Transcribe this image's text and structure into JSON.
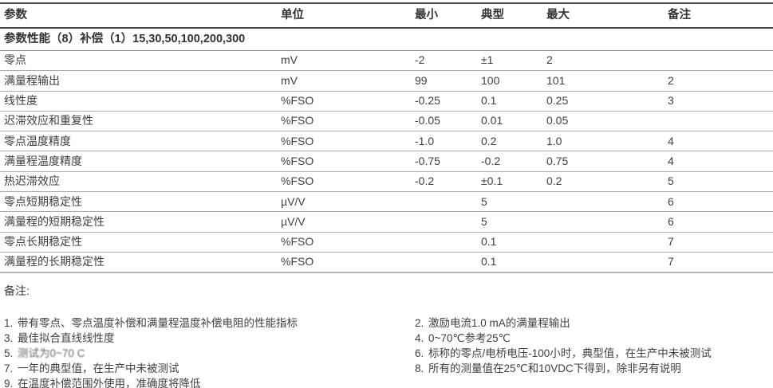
{
  "table": {
    "columns": {
      "param": "参数",
      "unit": "单位",
      "min": "最小",
      "typ": "典型",
      "max": "最大",
      "note": "备注"
    },
    "section_title": "参数性能（8）补偿（1）15,30,50,100,200,300",
    "rows": [
      {
        "param": "零点",
        "unit": "mV",
        "min": "-2",
        "typ": "±1",
        "max": "2",
        "note": ""
      },
      {
        "param": "满量程输出",
        "unit": "mV",
        "min": "99",
        "typ": "100",
        "max": "101",
        "note": "2"
      },
      {
        "param": "线性度",
        "unit": "%FSO",
        "min": "-0.25",
        "typ": "0.1",
        "max": "0.25",
        "note": "3"
      },
      {
        "param": "迟滞效应和重复性",
        "unit": "%FSO",
        "min": "-0.05",
        "typ": "0.01",
        "max": "0.05",
        "note": ""
      },
      {
        "param": "零点温度精度",
        "unit": "%FSO",
        "min": "-1.0",
        "typ": "0.2",
        "max": "1.0",
        "note": "4"
      },
      {
        "param": "满量程温度精度",
        "unit": "%FSO",
        "min": "-0.75",
        "typ": "-0.2",
        "max": "0.75",
        "note": "4"
      },
      {
        "param": "热迟滞效应",
        "unit": "%FSO",
        "min": "-0.2",
        "typ": "±0.1",
        "max": "0.2",
        "note": "5"
      },
      {
        "param": "零点短期稳定性",
        "unit": "µV/V",
        "min": "",
        "typ": "5",
        "max": "",
        "note": "6"
      },
      {
        "param": "满量程的短期稳定性",
        "unit": "µV/V",
        "min": "",
        "typ": "5",
        "max": "",
        "note": "6"
      },
      {
        "param": "零点长期稳定性",
        "unit": "%FSO",
        "min": "",
        "typ": "0.1",
        "max": "",
        "note": "7"
      },
      {
        "param": "满量程的长期稳定性",
        "unit": "%FSO",
        "min": "",
        "typ": "0.1",
        "max": "",
        "note": "7"
      }
    ]
  },
  "notes": {
    "label": "备注:",
    "left": [
      {
        "num": "1.",
        "text": "带有零点、零点温度补偿和满量程温度补偿电阻的性能指标"
      },
      {
        "num": "3.",
        "text": "最佳拟合直线线性度"
      },
      {
        "num": "5.",
        "text": "测试为0~70 C"
      },
      {
        "num": "7.",
        "text": "一年的典型值，在生产中未被测试"
      },
      {
        "num": "9.",
        "text": "在温度补偿范围外使用，准确度将降低"
      }
    ],
    "right": [
      {
        "num": "2.",
        "text": "激励电流1.0 mA的满量程输出"
      },
      {
        "num": "4.",
        "text": "0~70℃参考25℃"
      },
      {
        "num": "6.",
        "text": "标称的零点/电桥电压-100小时，典型值，在生产中未被测试"
      },
      {
        "num": "8.",
        "text": "所有的测量值在25℃和10VDC下得到，除非另有说明"
      }
    ]
  },
  "colors": {
    "text": "#3a3a3a",
    "rule_dark": "#4a4a4a",
    "rule_mid": "#8c8c8c",
    "rule_light": "#ababab"
  }
}
